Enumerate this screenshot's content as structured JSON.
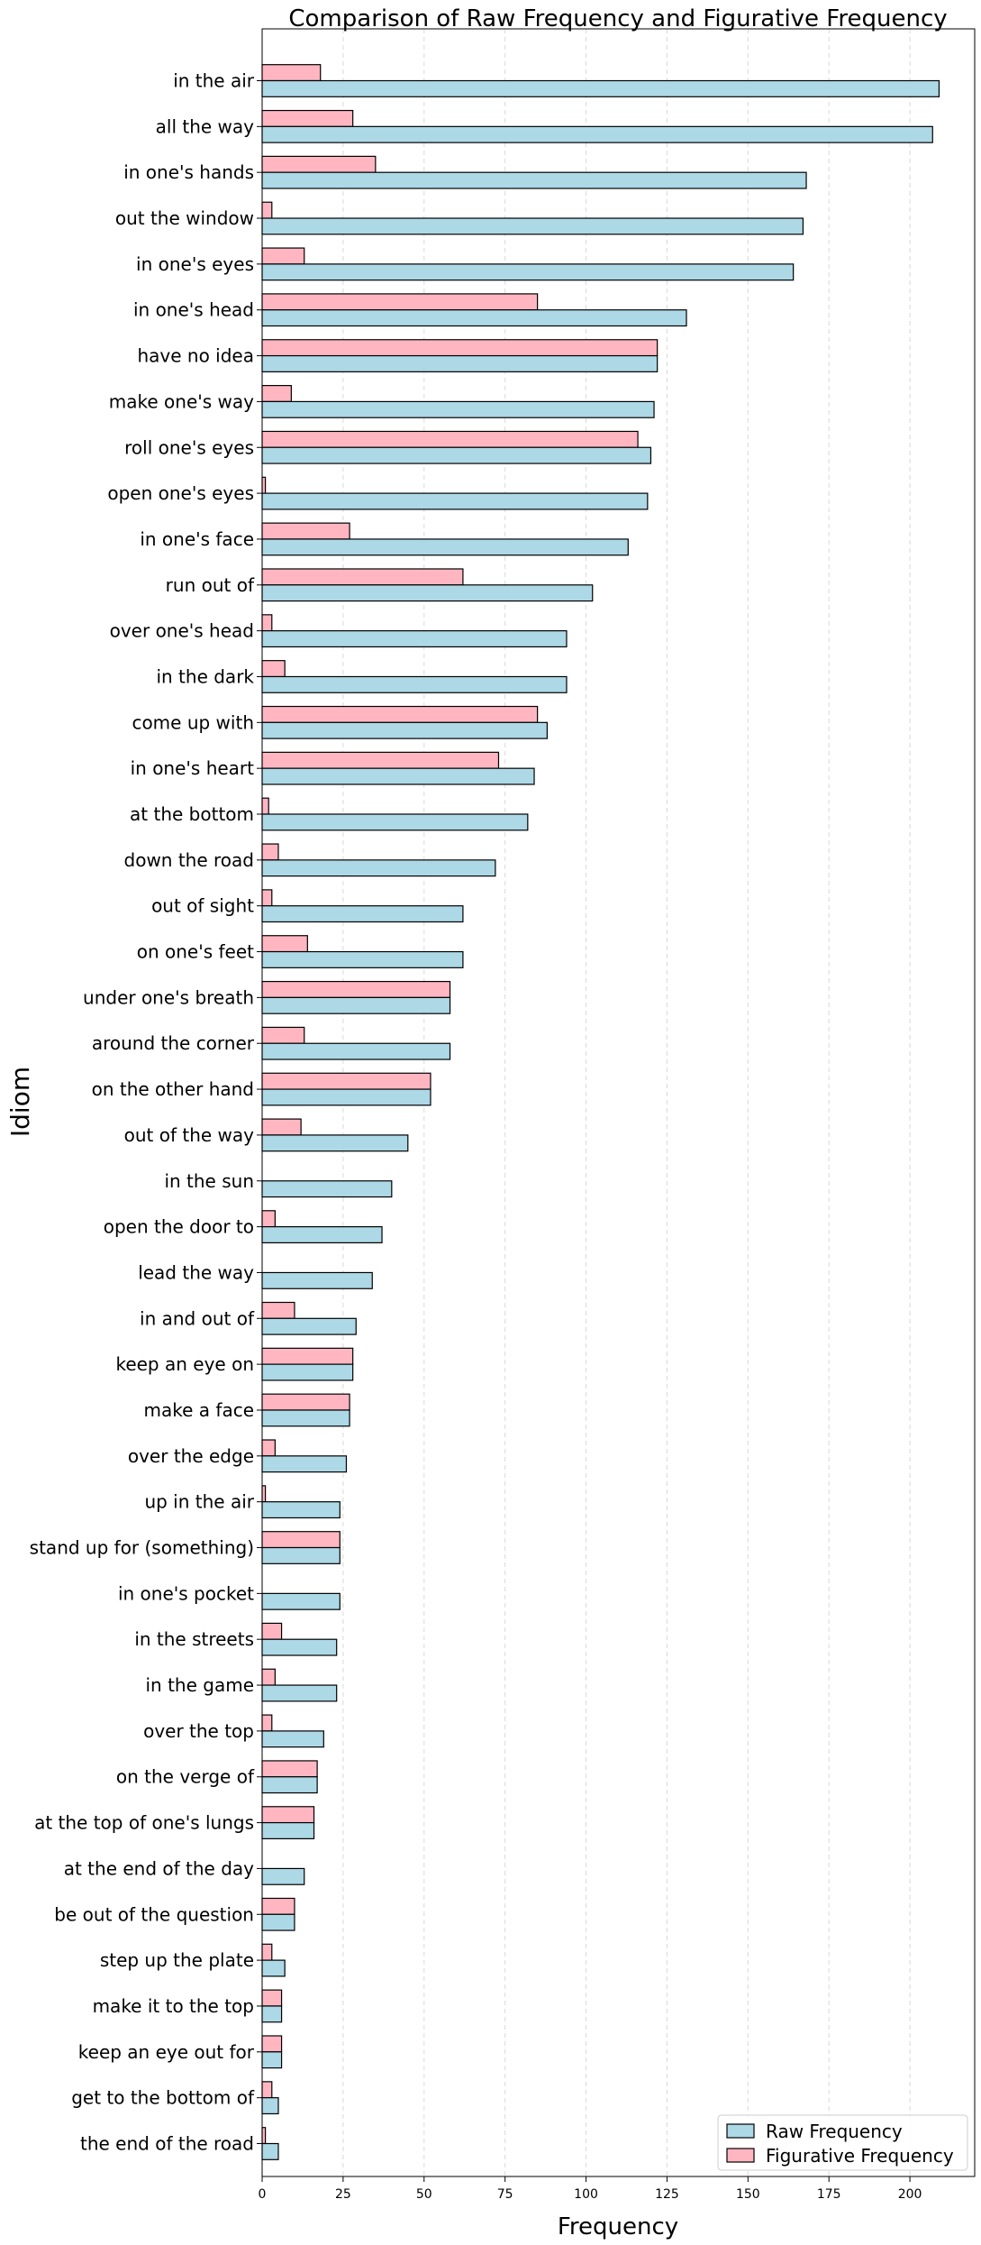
{
  "chart_data": {
    "type": "bar",
    "orientation": "horizontal",
    "title": "Comparison of Raw Frequency and Figurative Frequency",
    "xlabel": "Frequency",
    "ylabel": "Idiom",
    "xlim": [
      0,
      220
    ],
    "xticks": [
      0,
      25,
      50,
      75,
      100,
      125,
      150,
      175,
      200
    ],
    "grid": "vertical dashed",
    "legend_position": "bottom-right",
    "categories": [
      "in the air",
      "all the way",
      "in one's hands",
      "out the window",
      "in one's eyes",
      "in one's head",
      "have no idea",
      "make one's way",
      "roll one's eyes",
      "open one's eyes",
      "in one's face",
      "run out of",
      "over one's head",
      "in the dark",
      "come up with",
      "in one's heart",
      "at the bottom",
      "down the road",
      "out of sight",
      "on one's feet",
      "under one's breath",
      "around the corner",
      "on the other hand",
      "out of the way",
      "in the sun",
      "open the door to",
      "lead the way",
      "in and out of",
      "keep an eye on",
      "make a face",
      "over the edge",
      "up in the air",
      "stand up for (something)",
      "in one's pocket",
      "in the streets",
      "in the game",
      "over the top",
      "on the verge of",
      "at the top of one's lungs",
      "at the end of the day",
      "be out of the question",
      "step up the plate",
      "make it to the top",
      "keep an eye out for",
      "get to the bottom of",
      "the end of the road"
    ],
    "series": [
      {
        "name": "Raw Frequency",
        "color": "#add8e6",
        "values": [
          209,
          207,
          168,
          167,
          164,
          131,
          122,
          121,
          120,
          119,
          113,
          102,
          94,
          94,
          88,
          84,
          82,
          72,
          62,
          62,
          58,
          58,
          52,
          45,
          40,
          37,
          34,
          29,
          28,
          27,
          26,
          24,
          24,
          24,
          23,
          23,
          19,
          17,
          16,
          13,
          10,
          7,
          6,
          6,
          5,
          5
        ]
      },
      {
        "name": "Figurative Frequency",
        "color": "#ffb6c1",
        "values": [
          18,
          28,
          35,
          3,
          13,
          85,
          122,
          9,
          116,
          1,
          27,
          62,
          3,
          7,
          85,
          73,
          2,
          5,
          3,
          14,
          58,
          13,
          52,
          12,
          0,
          4,
          0,
          10,
          28,
          27,
          4,
          1,
          24,
          0,
          6,
          4,
          3,
          17,
          16,
          0,
          10,
          3,
          6,
          6,
          3,
          1
        ]
      }
    ]
  }
}
